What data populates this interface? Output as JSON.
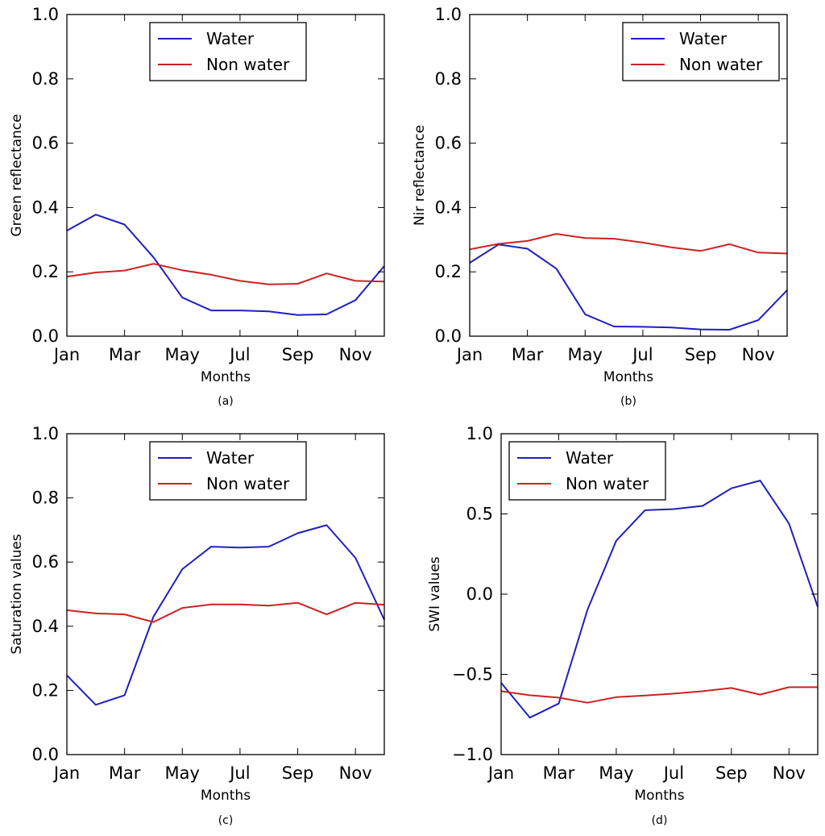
{
  "chart_data": [
    {
      "type": "line",
      "panel": "a",
      "caption": "(a)",
      "xlabel": "Months",
      "ylabel": "Green reflectance",
      "x": [
        1,
        2,
        3,
        4,
        5,
        6,
        7,
        8,
        9,
        10,
        11,
        12
      ],
      "xticks": [
        1,
        3,
        5,
        7,
        9,
        11
      ],
      "xticklabels": [
        "Jan",
        "Mar",
        "May",
        "Jul",
        "Sep",
        "Nov"
      ],
      "xlim": [
        1,
        12
      ],
      "ylim": [
        0,
        1
      ],
      "yticks": [
        0,
        0.2,
        0.4,
        0.6,
        0.8,
        1.0
      ],
      "yticklabels": [
        "0.0",
        "0.2",
        "0.4",
        "0.6",
        "0.8",
        "1.0"
      ],
      "legend_loc": "upper-center",
      "series": [
        {
          "name": "Water",
          "color": "#1f1fbf",
          "values": [
            0.328,
            0.378,
            0.347,
            0.245,
            0.12,
            0.08,
            0.08,
            0.077,
            0.066,
            0.068,
            0.112,
            0.218
          ]
        },
        {
          "name": "Non water",
          "color": "#cc2222",
          "values": [
            0.185,
            0.198,
            0.204,
            0.225,
            0.205,
            0.191,
            0.172,
            0.161,
            0.163,
            0.195,
            0.172,
            0.17
          ]
        }
      ]
    },
    {
      "type": "line",
      "panel": "b",
      "caption": "(b)",
      "xlabel": "Months",
      "ylabel": "Nir reflectance",
      "x": [
        1,
        2,
        3,
        4,
        5,
        6,
        7,
        8,
        9,
        10,
        11,
        12
      ],
      "xticks": [
        1,
        3,
        5,
        7,
        9,
        11
      ],
      "xticklabels": [
        "Jan",
        "Mar",
        "May",
        "Jul",
        "Sep",
        "Nov"
      ],
      "xlim": [
        1,
        12
      ],
      "ylim": [
        0,
        1
      ],
      "yticks": [
        0,
        0.2,
        0.4,
        0.6,
        0.8,
        1.0
      ],
      "yticklabels": [
        "0.0",
        "0.2",
        "0.4",
        "0.6",
        "0.8",
        "1.0"
      ],
      "legend_loc": "upper-right",
      "series": [
        {
          "name": "Water",
          "color": "#1f1fbf",
          "values": [
            0.228,
            0.285,
            0.272,
            0.21,
            0.068,
            0.03,
            0.029,
            0.027,
            0.021,
            0.02,
            0.05,
            0.143
          ]
        },
        {
          "name": "Non water",
          "color": "#cc2222",
          "values": [
            0.27,
            0.287,
            0.296,
            0.318,
            0.305,
            0.303,
            0.291,
            0.276,
            0.265,
            0.286,
            0.26,
            0.257
          ]
        }
      ]
    },
    {
      "type": "line",
      "panel": "c",
      "caption": "(c)",
      "xlabel": "Months",
      "ylabel": "Saturation values",
      "x": [
        1,
        2,
        3,
        4,
        5,
        6,
        7,
        8,
        9,
        10,
        11,
        12
      ],
      "xticks": [
        1,
        3,
        5,
        7,
        9,
        11
      ],
      "xticklabels": [
        "Jan",
        "Mar",
        "May",
        "Jul",
        "Sep",
        "Nov"
      ],
      "xlim": [
        1,
        12
      ],
      "ylim": [
        0,
        1
      ],
      "yticks": [
        0,
        0.2,
        0.4,
        0.6,
        0.8,
        1.0
      ],
      "yticklabels": [
        "0.0",
        "0.2",
        "0.4",
        "0.6",
        "0.8",
        "1.0"
      ],
      "legend_loc": "upper-center",
      "series": [
        {
          "name": "Water",
          "color": "#1f1fbf",
          "values": [
            0.247,
            0.155,
            0.185,
            0.43,
            0.578,
            0.648,
            0.645,
            0.648,
            0.69,
            0.715,
            0.613,
            0.42
          ]
        },
        {
          "name": "Non water",
          "color": "#cc2222",
          "values": [
            0.45,
            0.44,
            0.437,
            0.413,
            0.457,
            0.468,
            0.468,
            0.464,
            0.473,
            0.437,
            0.473,
            0.467
          ]
        }
      ]
    },
    {
      "type": "line",
      "panel": "d",
      "caption": "(d)",
      "xlabel": "Months",
      "ylabel": "SWI values",
      "x": [
        1,
        2,
        3,
        4,
        5,
        6,
        7,
        8,
        9,
        10,
        11,
        12
      ],
      "xticks": [
        1,
        3,
        5,
        7,
        9,
        11
      ],
      "xticklabels": [
        "Jan",
        "Mar",
        "May",
        "Jul",
        "Sep",
        "Nov"
      ],
      "xlim": [
        1,
        12
      ],
      "ylim": [
        -1,
        1
      ],
      "yticks": [
        -1.0,
        -0.5,
        0.0,
        0.5,
        1.0
      ],
      "yticklabels": [
        "−1.0",
        "−0.5",
        "0.0",
        "0.5",
        "1.0"
      ],
      "legend_loc": "upper-left",
      "series": [
        {
          "name": "Water",
          "color": "#1f1fbf",
          "values": [
            -0.553,
            -0.77,
            -0.682,
            -0.097,
            0.333,
            0.523,
            0.53,
            0.55,
            0.66,
            0.708,
            0.44,
            -0.08
          ]
        },
        {
          "name": "Non water",
          "color": "#cc2222",
          "values": [
            -0.605,
            -0.63,
            -0.645,
            -0.677,
            -0.642,
            -0.632,
            -0.62,
            -0.605,
            -0.585,
            -0.626,
            -0.58,
            -0.58
          ]
        }
      ]
    }
  ]
}
